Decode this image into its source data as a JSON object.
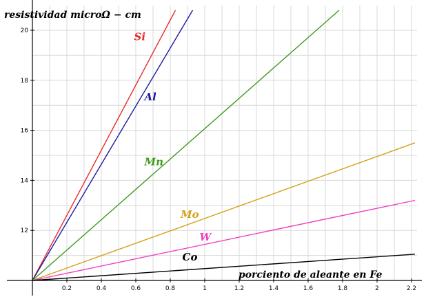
{
  "chart_data": {
    "type": "line",
    "ylabel": "resistividad microΩ − cm",
    "xlabel": "porciento de aleante en Fe",
    "xlim": [
      0,
      2.22
    ],
    "ylim": [
      10,
      20.6
    ],
    "x_ticks": [
      0.2,
      0.4,
      0.6,
      0.8,
      1,
      1.2,
      1.4,
      1.6,
      1.8,
      2,
      2.2
    ],
    "x_tick_labels": [
      "0.2",
      "0.4",
      "0.6",
      "0.8",
      "1",
      "1.2",
      "1.4",
      "1.6",
      "1.8",
      "2",
      "2.2"
    ],
    "y_ticks": [
      12,
      14,
      16,
      18,
      20
    ],
    "y_tick_labels": [
      "12",
      "14",
      "16",
      "18",
      "20"
    ],
    "grid": true,
    "series": [
      {
        "name": "Si",
        "color": "#e8292b",
        "x": [
          0,
          0.83
        ],
        "y": [
          10,
          20.8
        ],
        "label_at": [
          0.59,
          19.6
        ]
      },
      {
        "name": "Al",
        "color": "#1a1aa0",
        "x": [
          0,
          0.93
        ],
        "y": [
          10,
          20.8
        ],
        "label_at": [
          0.65,
          17.2
        ]
      },
      {
        "name": "Mn",
        "color": "#3d9a1f",
        "x": [
          0,
          1.78
        ],
        "y": [
          10,
          20.8
        ],
        "label_at": [
          0.65,
          14.6
        ]
      },
      {
        "name": "Mo",
        "color": "#d4a017",
        "x": [
          0,
          2.22
        ],
        "y": [
          10,
          15.5
        ],
        "label_at": [
          0.86,
          12.5
        ]
      },
      {
        "name": "W",
        "color": "#ee3fc2",
        "x": [
          0,
          2.22
        ],
        "y": [
          10,
          13.2
        ],
        "label_at": [
          0.97,
          11.6
        ]
      },
      {
        "name": "Co",
        "color": "#000000",
        "x": [
          0,
          2.22
        ],
        "y": [
          10,
          11.05
        ],
        "label_at": [
          0.87,
          10.8
        ]
      }
    ]
  }
}
